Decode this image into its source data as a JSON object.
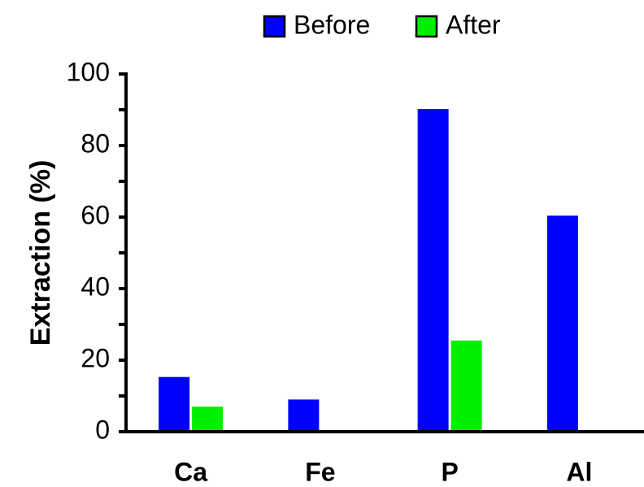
{
  "chart_data": {
    "type": "bar",
    "categories": [
      "Ca",
      "Fe",
      "P",
      "Al"
    ],
    "series": [
      {
        "name": "Before",
        "values": [
          15.3,
          9.0,
          90.2,
          60.4
        ]
      },
      {
        "name": "After",
        "values": [
          7.0,
          0.3,
          25.5,
          0.3
        ]
      }
    ],
    "colors": [
      "#0000ff",
      "#00ee00"
    ],
    "title": "",
    "xlabel": "",
    "ylabel": "Extraction (%)",
    "ylim": [
      0,
      100
    ],
    "yticks": [
      0,
      20,
      40,
      60,
      80,
      100
    ],
    "grid": false,
    "legend_position": "top"
  }
}
